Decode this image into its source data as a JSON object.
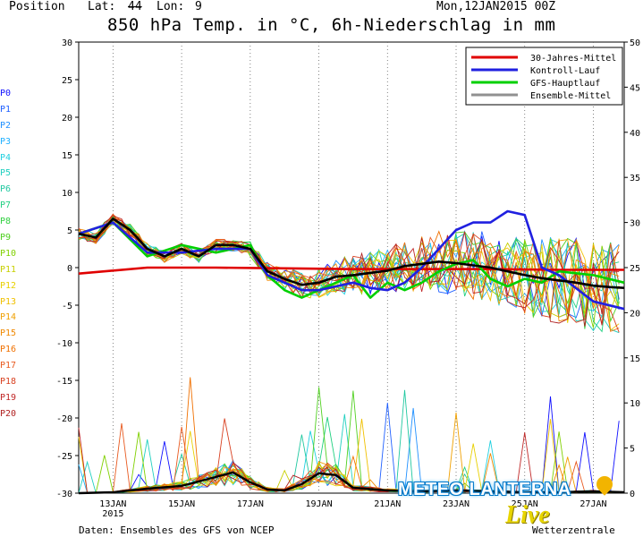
{
  "header": {
    "position_label": "Position",
    "lat_label": "Lat:",
    "lat_value": "44",
    "lon_label": "Lon:",
    "lon_value": "9",
    "run": "Mon,12JAN2015 00Z",
    "title": "850 hPa Temp. in °C, 6h-Niederschlag in mm"
  },
  "footer": {
    "source": "Daten: Ensembles des GFS von NCEP"
  },
  "logo": {
    "brand": "METEO LANTERNA",
    "script": "Live",
    "sub": "Wetterzentrale",
    "pin_color": "#f2b400"
  },
  "members": [
    {
      "label": "P0",
      "color": "#1010ff"
    },
    {
      "label": "P1",
      "color": "#2060ff"
    },
    {
      "label": "P2",
      "color": "#2090ff"
    },
    {
      "label": "P3",
      "color": "#20b0ff"
    },
    {
      "label": "P4",
      "color": "#20d0e0"
    },
    {
      "label": "P5",
      "color": "#20d0c0"
    },
    {
      "label": "P6",
      "color": "#20c8a0"
    },
    {
      "label": "P7",
      "color": "#20d080"
    },
    {
      "label": "P8",
      "color": "#30d040"
    },
    {
      "label": "P9",
      "color": "#50d020"
    },
    {
      "label": "P10",
      "color": "#80d000"
    },
    {
      "label": "P11",
      "color": "#c8d000"
    },
    {
      "label": "P12",
      "color": "#e8d000"
    },
    {
      "label": "P13",
      "color": "#f0c000"
    },
    {
      "label": "P14",
      "color": "#f0a000"
    },
    {
      "label": "P15",
      "color": "#f08800"
    },
    {
      "label": "P16",
      "color": "#f07000"
    },
    {
      "label": "P17",
      "color": "#e85a20"
    },
    {
      "label": "P18",
      "color": "#d84020"
    },
    {
      "label": "P19",
      "color": "#c02828"
    },
    {
      "label": "P20",
      "color": "#b02020"
    }
  ],
  "chart_data": {
    "type": "line",
    "title": "850 hPa Temp. in °C, 6h-Niederschlag in mm",
    "x_ticks": [
      {
        "day": 13,
        "label": "13JAN",
        "sub": "2015"
      },
      {
        "day": 15,
        "label": "15JAN"
      },
      {
        "day": 17,
        "label": "17JAN"
      },
      {
        "day": 19,
        "label": "19JAN"
      },
      {
        "day": 21,
        "label": "21JAN"
      },
      {
        "day": 23,
        "label": "23JAN"
      },
      {
        "day": 25,
        "label": "25JAN"
      },
      {
        "day": 27,
        "label": "27JAN"
      }
    ],
    "xlim": [
      12,
      27.9
    ],
    "y_left": {
      "ylim": [
        -30,
        30
      ],
      "ticks": [
        30,
        25,
        20,
        15,
        10,
        5,
        0,
        -5,
        -10,
        -15,
        -20,
        -25,
        -30
      ],
      "unit": "°C"
    },
    "y_right": {
      "ylim": [
        0,
        50
      ],
      "ticks": [
        50,
        45,
        40,
        35,
        30,
        25,
        20,
        15,
        10,
        5,
        0
      ],
      "unit": "mm"
    },
    "grid": "vertical dotted",
    "legend_position": "top-right",
    "legend": [
      {
        "name": "30-Jahres-Mittel",
        "color": "#e00000"
      },
      {
        "name": "Kontroll-Lauf",
        "color": "#2020e0"
      },
      {
        "name": "GFS-Hauptlauf",
        "color": "#00d000"
      },
      {
        "name": "Ensemble-Mittel",
        "color": "#909090"
      }
    ],
    "climate_mean": {
      "x": [
        12,
        14,
        16,
        18,
        20,
        22,
        24,
        26,
        27.9
      ],
      "y": [
        -0.8,
        0,
        0,
        -0.1,
        -0.2,
        -0.2,
        -0.2,
        -0.3,
        -0.3
      ]
    },
    "ensemble_mean": {
      "x": [
        12,
        12.5,
        13,
        13.5,
        14,
        14.5,
        15,
        15.5,
        16,
        16.5,
        17,
        17.5,
        18,
        18.5,
        19,
        19.5,
        20,
        20.5,
        21,
        21.5,
        22,
        22.5,
        23,
        23.5,
        24,
        24.5,
        25,
        25.5,
        26,
        26.5,
        27,
        27.5,
        27.9
      ],
      "y": [
        4.5,
        4,
        6.5,
        5,
        2.5,
        1.5,
        2.5,
        1.5,
        3,
        3,
        2.5,
        -0.5,
        -1.5,
        -2.3,
        -2,
        -1.2,
        -1,
        -0.7,
        -0.4,
        0.2,
        0.5,
        0.8,
        0.6,
        0.3,
        0,
        -0.5,
        -1,
        -1.4,
        -1.7,
        -2,
        -2.4,
        -2.6,
        -2.7
      ]
    },
    "control_run": {
      "x": [
        12,
        13,
        14,
        15,
        16,
        17,
        17.5,
        18,
        18.5,
        19,
        19.5,
        20,
        20.5,
        21,
        21.5,
        22,
        22.5,
        23,
        23.5,
        24,
        24.5,
        25,
        25.5,
        26,
        27,
        27.9
      ],
      "y": [
        4.5,
        6,
        2,
        2,
        2.5,
        2.5,
        -1,
        -2,
        -3,
        -3,
        -2.5,
        -2,
        -2.7,
        -3,
        -2,
        0,
        2.5,
        5,
        6,
        6,
        7.5,
        7,
        0,
        -1,
        -4.5,
        -5.5
      ]
    },
    "main_run": {
      "x": [
        12,
        13,
        14,
        15,
        16,
        17,
        17.5,
        18,
        18.5,
        19,
        19.5,
        20,
        20.5,
        21,
        21.5,
        22,
        22.5,
        23,
        23.5,
        24,
        24.5,
        25,
        25.5,
        26,
        27,
        27.9
      ],
      "y": [
        4.5,
        6,
        1.5,
        3,
        2,
        3,
        -1,
        -3,
        -4,
        -3,
        -2,
        -1,
        -4,
        -2,
        -3,
        -2,
        -0.5,
        0.5,
        1,
        -1.5,
        -2.5,
        -1.5,
        -2,
        -0.5,
        -1,
        -2
      ]
    },
    "precip_mean": {
      "x": [
        12,
        13,
        14,
        15,
        16,
        16.5,
        17,
        17.5,
        18,
        18.5,
        19,
        19.5,
        20,
        21,
        22,
        23,
        24,
        25,
        26,
        27,
        27.9
      ],
      "y": [
        0,
        0.1,
        0.5,
        0.8,
        1.8,
        2.3,
        1.2,
        0.4,
        0.3,
        1,
        2.2,
        2,
        0.6,
        0.3,
        0.2,
        0.3,
        0.2,
        0.1,
        0.1,
        0.2,
        0.1
      ]
    }
  }
}
